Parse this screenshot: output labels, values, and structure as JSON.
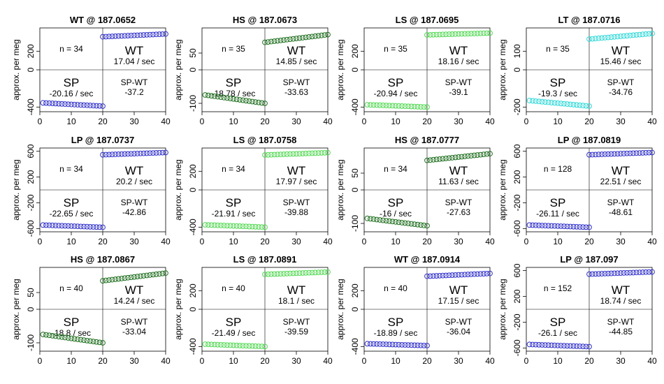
{
  "figure": {
    "x_ticks": [
      "0",
      "10",
      "20",
      "30",
      "40"
    ],
    "y_axis_label": "approx. per meg",
    "colors": {
      "blue": "#3030cc",
      "green": "#1e6e1e",
      "lightgreen": "#50d850",
      "cyan": "#30d8d8"
    }
  },
  "chart_data": [
    {
      "type": "scatter",
      "title": "WT @ 187.0652",
      "color": "blue",
      "ylabel": "approx. per meg",
      "xlim": [
        0,
        40
      ],
      "ylim": [
        -450,
        450
      ],
      "yticks": [
        "-400",
        "0",
        "200"
      ],
      "ytick_values": [
        -400,
        0,
        200
      ],
      "n_text": "n = 34",
      "wt_label": "WT",
      "wt_rate": "17.04 / sec",
      "sp_label": "SP",
      "sp_rate": "-20.16 / sec",
      "spwt_label": "SP-WT",
      "spwt_value": "-37.2",
      "sp_series": {
        "x_start": 1,
        "x_end": 20,
        "y_start": -355,
        "y_end": -390,
        "count": 20
      },
      "wt_series": {
        "x_start": 20,
        "x_end": 40,
        "y_start": 355,
        "y_end": 385,
        "count": 21
      }
    },
    {
      "type": "scatter",
      "title": "HS @ 187.0673",
      "color": "green",
      "ylabel": "approx. per meg",
      "xlim": [
        0,
        40
      ],
      "ylim": [
        -125,
        125
      ],
      "yticks": [
        "-100",
        "0",
        "50"
      ],
      "ytick_values": [
        -100,
        0,
        50
      ],
      "n_text": "n = 35",
      "wt_label": "WT",
      "wt_rate": "14.85 / sec",
      "sp_label": "SP",
      "sp_rate": "-18.78 / sec",
      "spwt_label": "SP-WT",
      "spwt_value": "-33.63",
      "sp_series": {
        "x_start": 1,
        "x_end": 20,
        "y_start": -75,
        "y_end": -100,
        "count": 20
      },
      "wt_series": {
        "x_start": 20,
        "x_end": 40,
        "y_start": 82,
        "y_end": 105,
        "count": 21
      }
    },
    {
      "type": "scatter",
      "title": "LS @ 187.0695",
      "color": "lightgreen",
      "ylabel": "approx. per meg",
      "xlim": [
        0,
        40
      ],
      "ylim": [
        -450,
        450
      ],
      "yticks": [
        "-400",
        "0",
        "200"
      ],
      "ytick_values": [
        -400,
        0,
        200
      ],
      "n_text": "n = 35",
      "wt_label": "WT",
      "wt_rate": "18.16 / sec",
      "sp_label": "SP",
      "sp_rate": "-20.94 / sec",
      "spwt_label": "SP-WT",
      "spwt_value": "-39.1",
      "sp_series": {
        "x_start": 1,
        "x_end": 20,
        "y_start": -375,
        "y_end": -400,
        "count": 20
      },
      "wt_series": {
        "x_start": 20,
        "x_end": 40,
        "y_start": 375,
        "y_end": 395,
        "count": 21
      }
    },
    {
      "type": "scatter",
      "title": "LT @ 187.0716",
      "color": "cyan",
      "ylabel": "approx. per meg",
      "xlim": [
        0,
        40
      ],
      "ylim": [
        -225,
        225
      ],
      "yticks": [
        "-200",
        "0",
        "100"
      ],
      "ytick_values": [
        -200,
        0,
        100
      ],
      "n_text": "n = 35",
      "wt_label": "WT",
      "wt_rate": "15.46 / sec",
      "sp_label": "SP",
      "sp_rate": "-19.3 / sec",
      "spwt_label": "SP-WT",
      "spwt_value": "-34.76",
      "sp_series": {
        "x_start": 1,
        "x_end": 20,
        "y_start": -165,
        "y_end": -195,
        "count": 20
      },
      "wt_series": {
        "x_start": 20,
        "x_end": 40,
        "y_start": 165,
        "y_end": 195,
        "count": 21
      }
    },
    {
      "type": "scatter",
      "title": "LP @ 187.0737",
      "color": "blue",
      "ylabel": "approx. per meg",
      "xlim": [
        0,
        40
      ],
      "ylim": [
        -650,
        650
      ],
      "yticks": [
        "-600",
        "-200",
        "200",
        "600"
      ],
      "ytick_values": [
        -600,
        -200,
        200,
        600
      ],
      "n_text": "n = 34",
      "wt_label": "WT",
      "wt_rate": "20.2 / sec",
      "sp_label": "SP",
      "sp_rate": "-22.65 / sec",
      "spwt_label": "SP-WT",
      "spwt_value": "-42.86",
      "sp_series": {
        "x_start": 1,
        "x_end": 20,
        "y_start": -545,
        "y_end": -580,
        "count": 20
      },
      "wt_series": {
        "x_start": 20,
        "x_end": 40,
        "y_start": 545,
        "y_end": 580,
        "count": 21
      }
    },
    {
      "type": "scatter",
      "title": "LS @ 187.0758",
      "color": "lightgreen",
      "ylabel": "approx. per meg",
      "xlim": [
        0,
        40
      ],
      "ylim": [
        -450,
        450
      ],
      "yticks": [
        "-400",
        "0",
        "200"
      ],
      "ytick_values": [
        -400,
        0,
        200
      ],
      "n_text": "n = 34",
      "wt_label": "WT",
      "wt_rate": "17.97 / sec",
      "sp_label": "SP",
      "sp_rate": "-21.91 / sec",
      "spwt_label": "SP-WT",
      "spwt_value": "-39.88",
      "sp_series": {
        "x_start": 1,
        "x_end": 20,
        "y_start": -375,
        "y_end": -400,
        "count": 20
      },
      "wt_series": {
        "x_start": 20,
        "x_end": 40,
        "y_start": 375,
        "y_end": 400,
        "count": 21
      }
    },
    {
      "type": "scatter",
      "title": "HS @ 187.0777",
      "color": "green",
      "ylabel": "approx. per meg",
      "xlim": [
        0,
        40
      ],
      "ylim": [
        -125,
        125
      ],
      "yticks": [
        "-100",
        "0",
        "50"
      ],
      "ytick_values": [
        -100,
        0,
        50
      ],
      "n_text": "n = 34",
      "wt_label": "WT",
      "wt_rate": "11.63 / sec",
      "sp_label": "SP",
      "sp_rate": "-16 / sec",
      "spwt_label": "SP-WT",
      "spwt_value": "-27.63",
      "sp_series": {
        "x_start": 1,
        "x_end": 20,
        "y_start": -85,
        "y_end": -107,
        "count": 20
      },
      "wt_series": {
        "x_start": 20,
        "x_end": 40,
        "y_start": 88,
        "y_end": 108,
        "count": 21
      }
    },
    {
      "type": "scatter",
      "title": "LP @ 187.0819",
      "color": "blue",
      "ylabel": "approx. per meg",
      "xlim": [
        0,
        40
      ],
      "ylim": [
        -650,
        650
      ],
      "yticks": [
        "-600",
        "-200",
        "200",
        "600"
      ],
      "ytick_values": [
        -600,
        -200,
        200,
        600
      ],
      "n_text": "n = 128",
      "wt_label": "WT",
      "wt_rate": "22.51 / sec",
      "sp_label": "SP",
      "sp_rate": "-26.11 / sec",
      "spwt_label": "SP-WT",
      "spwt_value": "-48.61",
      "sp_series": {
        "x_start": 1,
        "x_end": 20,
        "y_start": -545,
        "y_end": -580,
        "count": 20
      },
      "wt_series": {
        "x_start": 20,
        "x_end": 40,
        "y_start": 545,
        "y_end": 580,
        "count": 21
      }
    },
    {
      "type": "scatter",
      "title": "HS @ 187.0867",
      "color": "green",
      "ylabel": "approx. per meg",
      "xlim": [
        0,
        40
      ],
      "ylim": [
        -125,
        125
      ],
      "yticks": [
        "-100",
        "0",
        "50"
      ],
      "ytick_values": [
        -100,
        0,
        50
      ],
      "n_text": "n = 40",
      "wt_label": "WT",
      "wt_rate": "14.24 / sec",
      "sp_label": "SP",
      "sp_rate": "-18.8 / sec",
      "spwt_label": "SP-WT",
      "spwt_value": "-33.04",
      "sp_series": {
        "x_start": 1,
        "x_end": 20,
        "y_start": -75,
        "y_end": -100,
        "count": 20
      },
      "wt_series": {
        "x_start": 20,
        "x_end": 40,
        "y_start": 85,
        "y_end": 108,
        "count": 21
      }
    },
    {
      "type": "scatter",
      "title": "LS @ 187.0891",
      "color": "lightgreen",
      "ylabel": "approx. per meg",
      "xlim": [
        0,
        40
      ],
      "ylim": [
        -450,
        450
      ],
      "yticks": [
        "-400",
        "0",
        "200"
      ],
      "ytick_values": [
        -400,
        0,
        200
      ],
      "n_text": "n = 40",
      "wt_label": "WT",
      "wt_rate": "18.1 / sec",
      "sp_label": "SP",
      "sp_rate": "-21.49 / sec",
      "spwt_label": "SP-WT",
      "spwt_value": "-39.59",
      "sp_series": {
        "x_start": 1,
        "x_end": 20,
        "y_start": -375,
        "y_end": -400,
        "count": 20
      },
      "wt_series": {
        "x_start": 20,
        "x_end": 40,
        "y_start": 375,
        "y_end": 400,
        "count": 21
      }
    },
    {
      "type": "scatter",
      "title": "WT @ 187.0914",
      "color": "blue",
      "ylabel": "approx. per meg",
      "xlim": [
        0,
        40
      ],
      "ylim": [
        -450,
        450
      ],
      "yticks": [
        "-400",
        "0",
        "200"
      ],
      "ytick_values": [
        -400,
        0,
        200
      ],
      "n_text": "n = 40",
      "wt_label": "WT",
      "wt_rate": "17.15 / sec",
      "sp_label": "SP",
      "sp_rate": "-18.89 / sec",
      "spwt_label": "SP-WT",
      "spwt_value": "-36.04",
      "sp_series": {
        "x_start": 1,
        "x_end": 20,
        "y_start": -370,
        "y_end": -390,
        "count": 20
      },
      "wt_series": {
        "x_start": 20,
        "x_end": 40,
        "y_start": 355,
        "y_end": 385,
        "count": 21
      }
    },
    {
      "type": "scatter",
      "title": "LP @ 187.097",
      "color": "blue",
      "ylabel": "approx. per meg",
      "xlim": [
        0,
        40
      ],
      "ylim": [
        -650,
        650
      ],
      "yticks": [
        "-600",
        "-200",
        "200",
        "600"
      ],
      "ytick_values": [
        -600,
        -200,
        200,
        600
      ],
      "n_text": "n = 152",
      "wt_label": "WT",
      "wt_rate": "18.74 / sec",
      "sp_label": "SP",
      "sp_rate": "-26.1 / sec",
      "spwt_label": "SP-WT",
      "spwt_value": "-44.85",
      "sp_series": {
        "x_start": 1,
        "x_end": 20,
        "y_start": -545,
        "y_end": -580,
        "count": 20
      },
      "wt_series": {
        "x_start": 20,
        "x_end": 40,
        "y_start": 545,
        "y_end": 580,
        "count": 21
      }
    }
  ]
}
